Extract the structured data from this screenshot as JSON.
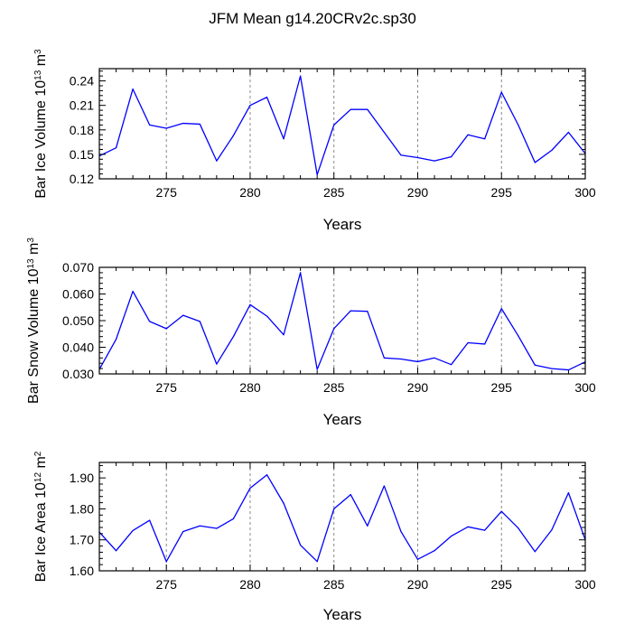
{
  "figure": {
    "title": "JFM Mean g14.20CRv2c.sp30"
  },
  "style": {
    "line_color": "#0000ff",
    "grid_color": "#888888",
    "axis_color": "#000000"
  },
  "chart_data": [
    {
      "type": "line",
      "ylabel": {
        "text": "Bar Ice Volume 10",
        "exponent": "13",
        "unit": " m",
        "unit_exponent": "3"
      },
      "xlabel": "Years",
      "xlim": [
        271,
        300
      ],
      "ylim": [
        0.12,
        0.255
      ],
      "xticks": [
        275,
        280,
        285,
        290,
        295,
        300
      ],
      "xtick_labels": [
        "275",
        "280",
        "285",
        "290",
        "295",
        "300"
      ],
      "yticks": [
        0.12,
        0.15,
        0.18,
        0.21,
        0.24
      ],
      "ytick_labels": [
        "0.12",
        "0.15",
        "0.18",
        "0.21",
        "0.24"
      ],
      "grid": "vertical dashed at major x ticks",
      "x": [
        271,
        272,
        273,
        274,
        275,
        276,
        277,
        278,
        279,
        280,
        281,
        282,
        283,
        284,
        285,
        286,
        287,
        288,
        289,
        290,
        291,
        292,
        293,
        294,
        295,
        296,
        297,
        298,
        299,
        300
      ],
      "values": [
        0.148,
        0.158,
        0.23,
        0.186,
        0.182,
        0.188,
        0.187,
        0.142,
        0.173,
        0.21,
        0.22,
        0.169,
        0.246,
        0.125,
        0.186,
        0.205,
        0.205,
        0.177,
        0.149,
        0.146,
        0.142,
        0.147,
        0.174,
        0.169,
        0.226,
        0.186,
        0.14,
        0.155,
        0.177,
        0.151
      ]
    },
    {
      "type": "line",
      "ylabel": {
        "text": "Bar Snow Volume 10",
        "exponent": "13",
        "unit": " m",
        "unit_exponent": "3"
      },
      "xlabel": "Years",
      "xlim": [
        271,
        300
      ],
      "ylim": [
        0.03,
        0.07
      ],
      "xticks": [
        275,
        280,
        285,
        290,
        295,
        300
      ],
      "xtick_labels": [
        "275",
        "280",
        "285",
        "290",
        "295",
        "300"
      ],
      "yticks": [
        0.03,
        0.04,
        0.05,
        0.06,
        0.07
      ],
      "ytick_labels": [
        "0.030",
        "0.040",
        "0.050",
        "0.060",
        "0.070"
      ],
      "grid": "vertical dashed at major x ticks",
      "x": [
        271,
        272,
        273,
        274,
        275,
        276,
        277,
        278,
        279,
        280,
        281,
        282,
        283,
        284,
        285,
        286,
        287,
        288,
        289,
        290,
        291,
        292,
        293,
        294,
        295,
        296,
        297,
        298,
        299,
        300
      ],
      "values": [
        0.0317,
        0.043,
        0.061,
        0.0497,
        0.047,
        0.052,
        0.0497,
        0.0337,
        0.044,
        0.056,
        0.0517,
        0.0447,
        0.068,
        0.0317,
        0.047,
        0.0537,
        0.0535,
        0.036,
        0.0356,
        0.0346,
        0.036,
        0.0335,
        0.0417,
        0.0412,
        0.0545,
        0.0443,
        0.0333,
        0.032,
        0.0315,
        0.0345
      ]
    },
    {
      "type": "line",
      "ylabel": {
        "text": "Bar Ice Area 10",
        "exponent": "12",
        "unit": " m",
        "unit_exponent": "2"
      },
      "xlabel": "Years",
      "xlim": [
        271,
        300
      ],
      "ylim": [
        1.6,
        1.95
      ],
      "xticks": [
        275,
        280,
        285,
        290,
        295,
        300
      ],
      "xtick_labels": [
        "275",
        "280",
        "285",
        "290",
        "295",
        "300"
      ],
      "yticks": [
        1.6,
        1.7,
        1.8,
        1.9
      ],
      "ytick_labels": [
        "1.60",
        "1.70",
        "1.80",
        "1.90"
      ],
      "grid": "vertical dashed at major x ticks",
      "x": [
        271,
        272,
        273,
        274,
        275,
        276,
        277,
        278,
        279,
        280,
        281,
        282,
        283,
        284,
        285,
        286,
        287,
        288,
        289,
        290,
        291,
        292,
        293,
        294,
        295,
        296,
        297,
        298,
        299,
        300
      ],
      "values": [
        1.725,
        1.665,
        1.73,
        1.763,
        1.63,
        1.727,
        1.745,
        1.737,
        1.768,
        1.867,
        1.91,
        1.818,
        1.683,
        1.63,
        1.8,
        1.846,
        1.745,
        1.874,
        1.727,
        1.637,
        1.665,
        1.712,
        1.742,
        1.731,
        1.792,
        1.738,
        1.662,
        1.732,
        1.852,
        1.7
      ]
    }
  ]
}
